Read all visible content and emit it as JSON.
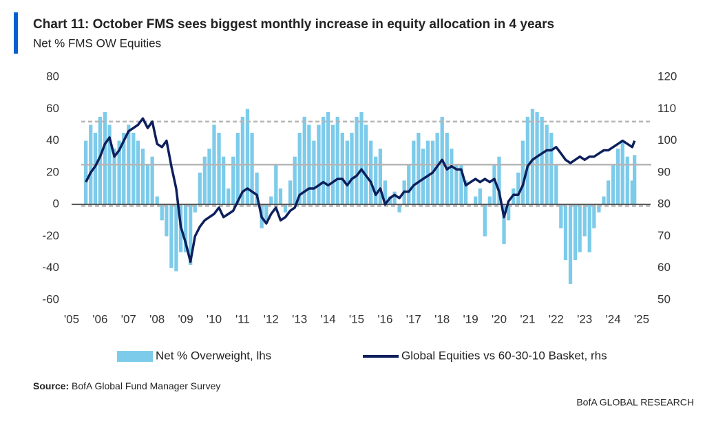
{
  "chart_data": {
    "type": "combo",
    "title": "Chart 11: October FMS sees biggest monthly increase in equity allocation in 4 years",
    "subtitle": "Net % FMS OW Equities",
    "source_label": "Source:",
    "source": "BofA Global Fund Manager Survey",
    "footer": "BofA GLOBAL RESEARCH",
    "x": [
      2005.5,
      2005.67,
      2005.83,
      2006,
      2006.17,
      2006.33,
      2006.5,
      2006.67,
      2006.83,
      2007,
      2007.17,
      2007.33,
      2007.5,
      2007.67,
      2007.83,
      2008,
      2008.17,
      2008.33,
      2008.5,
      2008.67,
      2008.83,
      2009,
      2009.17,
      2009.33,
      2009.5,
      2009.67,
      2009.83,
      2010,
      2010.17,
      2010.33,
      2010.5,
      2010.67,
      2010.83,
      2011,
      2011.17,
      2011.33,
      2011.5,
      2011.67,
      2011.83,
      2012,
      2012.17,
      2012.33,
      2012.5,
      2012.67,
      2012.83,
      2013,
      2013.17,
      2013.33,
      2013.5,
      2013.67,
      2013.83,
      2014,
      2014.17,
      2014.33,
      2014.5,
      2014.67,
      2014.83,
      2015,
      2015.17,
      2015.33,
      2015.5,
      2015.67,
      2015.83,
      2016,
      2016.17,
      2016.33,
      2016.5,
      2016.67,
      2016.83,
      2017,
      2017.17,
      2017.33,
      2017.5,
      2017.67,
      2017.83,
      2018,
      2018.17,
      2018.33,
      2018.5,
      2018.67,
      2018.83,
      2019,
      2019.17,
      2019.33,
      2019.5,
      2019.67,
      2019.83,
      2020,
      2020.17,
      2020.33,
      2020.5,
      2020.67,
      2020.83,
      2021,
      2021.17,
      2021.33,
      2021.5,
      2021.67,
      2021.83,
      2022,
      2022.17,
      2022.33,
      2022.5,
      2022.67,
      2022.83,
      2023,
      2023.17,
      2023.33,
      2023.5,
      2023.67,
      2023.83,
      2024,
      2024.17,
      2024.33,
      2024.5,
      2024.67,
      2024.75
    ],
    "series": [
      {
        "name": "Net % Overweight, lhs",
        "type": "bar",
        "color": "#7dcbea",
        "values": [
          40,
          50,
          45,
          55,
          58,
          50,
          35,
          40,
          45,
          50,
          45,
          40,
          35,
          25,
          30,
          5,
          -10,
          -20,
          -40,
          -42,
          -30,
          -30,
          -38,
          -5,
          20,
          30,
          35,
          50,
          45,
          30,
          10,
          30,
          45,
          55,
          60,
          45,
          20,
          -15,
          -10,
          5,
          25,
          10,
          -5,
          15,
          30,
          45,
          55,
          50,
          40,
          50,
          55,
          58,
          50,
          55,
          45,
          40,
          45,
          55,
          58,
          50,
          40,
          30,
          35,
          15,
          5,
          8,
          -5,
          15,
          25,
          40,
          45,
          35,
          40,
          40,
          45,
          55,
          45,
          35,
          25,
          25,
          15,
          0,
          5,
          10,
          -20,
          5,
          25,
          30,
          -25,
          -10,
          10,
          20,
          40,
          55,
          60,
          58,
          55,
          50,
          45,
          25,
          -15,
          -35,
          -50,
          -35,
          -30,
          -20,
          -30,
          -15,
          -5,
          5,
          15,
          25,
          35,
          40,
          30,
          15,
          31
        ]
      },
      {
        "name": "Global Equities vs 60-30-10 Basket, rhs",
        "type": "line",
        "axis": "y2",
        "color": "#0d1f5c",
        "values": [
          87,
          90,
          92,
          95,
          99,
          101,
          95,
          97,
          100,
          103,
          104,
          105,
          107,
          104,
          106,
          99,
          98,
          100,
          92,
          85,
          73,
          68,
          62,
          70,
          73,
          75,
          76,
          77,
          79,
          76,
          77,
          78,
          81,
          84,
          85,
          84,
          83,
          76,
          74,
          77,
          79,
          75,
          76,
          78,
          79,
          83,
          84,
          85,
          85,
          86,
          87,
          86,
          87,
          88,
          88,
          86,
          88,
          89,
          91,
          89,
          87,
          83,
          85,
          80,
          82,
          83,
          82,
          84,
          84,
          86,
          87,
          88,
          89,
          90,
          92,
          94,
          91,
          92,
          91,
          91,
          86,
          87,
          88,
          87,
          88,
          87,
          88,
          84,
          76,
          81,
          83,
          83,
          86,
          92,
          94,
          95,
          96,
          97,
          97,
          98,
          96,
          94,
          93,
          94,
          95,
          94,
          95,
          95,
          96,
          97,
          97,
          98,
          99,
          100,
          99,
          98,
          100
        ]
      }
    ],
    "xlim": [
      2005,
      2025
    ],
    "xticks": [
      {
        "value": 2005,
        "label": "'05"
      },
      {
        "value": 2006,
        "label": "'06"
      },
      {
        "value": 2007,
        "label": "'07"
      },
      {
        "value": 2008,
        "label": "'08"
      },
      {
        "value": 2009,
        "label": "'09"
      },
      {
        "value": 2010,
        "label": "'10"
      },
      {
        "value": 2011,
        "label": "'11"
      },
      {
        "value": 2012,
        "label": "'12"
      },
      {
        "value": 2013,
        "label": "'13"
      },
      {
        "value": 2014,
        "label": "'14"
      },
      {
        "value": 2015,
        "label": "'15"
      },
      {
        "value": 2016,
        "label": "'16"
      },
      {
        "value": 2017,
        "label": "'17"
      },
      {
        "value": 2018,
        "label": "'18"
      },
      {
        "value": 2019,
        "label": "'19"
      },
      {
        "value": 2020,
        "label": "'20"
      },
      {
        "value": 2021,
        "label": "'21"
      },
      {
        "value": 2022,
        "label": "'22"
      },
      {
        "value": 2023,
        "label": "'23"
      },
      {
        "value": 2024,
        "label": "'24"
      },
      {
        "value": 2025,
        "label": "'25"
      }
    ],
    "ylim": [
      -60,
      80
    ],
    "yticks": [
      -60,
      -40,
      -20,
      0,
      20,
      40,
      60,
      80
    ],
    "y2lim": [
      50,
      120
    ],
    "y2ticks": [
      50,
      60,
      70,
      80,
      90,
      100,
      110,
      120
    ],
    "reference_lines": [
      {
        "value": 52,
        "style": "dashed"
      },
      {
        "value": 25,
        "style": "solid"
      },
      {
        "value": -1,
        "style": "dashed"
      }
    ]
  }
}
